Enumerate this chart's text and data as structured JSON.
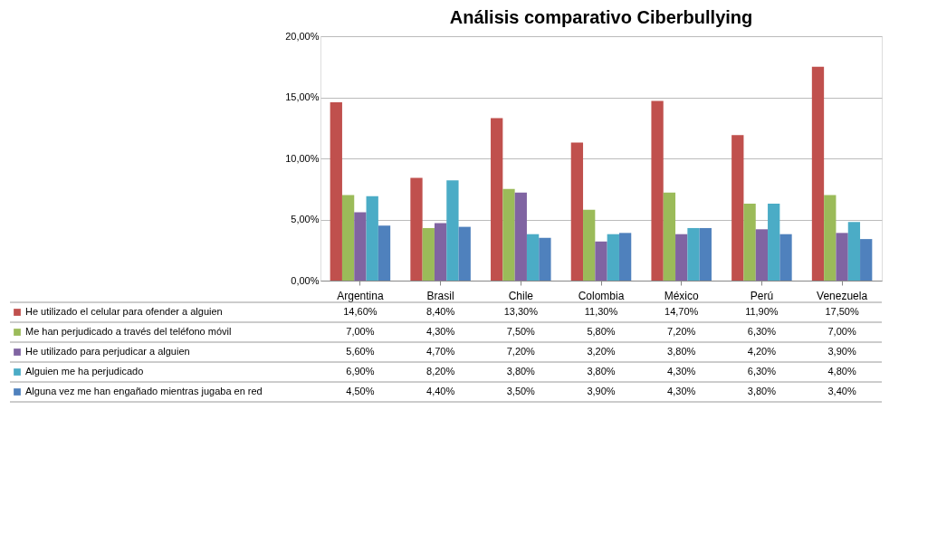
{
  "chart_data": {
    "type": "bar",
    "title": "Análisis comparativo Ciberbullying",
    "categories": [
      "Argentina",
      "Brasil",
      "Chile",
      "Colombia",
      "México",
      "Perú",
      "Venezuela"
    ],
    "series": [
      {
        "name": "He utilizado el celular para  ofender a alguien",
        "color": "#c0504d",
        "values": [
          14.6,
          8.4,
          13.3,
          11.3,
          14.7,
          11.9,
          17.5
        ],
        "value_labels": [
          "14,60%",
          "8,40%",
          "13,30%",
          "11,30%",
          "14,70%",
          "11,90%",
          "17,50%"
        ]
      },
      {
        "name": "Me han perjudicado a través del teléfono móvil",
        "color": "#9bbb59",
        "values": [
          7.0,
          4.3,
          7.5,
          5.8,
          7.2,
          6.3,
          7.0
        ],
        "value_labels": [
          "7,00%",
          "4,30%",
          "7,50%",
          "5,80%",
          "7,20%",
          "6,30%",
          "7,00%"
        ]
      },
      {
        "name": "He utilizado para  perjudicar a alguien",
        "color": "#8064a2",
        "values": [
          5.6,
          4.7,
          7.2,
          3.2,
          3.8,
          4.2,
          3.9
        ],
        "value_labels": [
          "5,60%",
          "4,70%",
          "7,20%",
          "3,20%",
          "3,80%",
          "4,20%",
          "3,90%"
        ]
      },
      {
        "name": "Alguien me  ha  perjudicado",
        "color": "#4bacc6",
        "values": [
          6.9,
          8.2,
          3.8,
          3.8,
          4.3,
          6.3,
          4.8
        ],
        "value_labels": [
          "6,90%",
          "8,20%",
          "3,80%",
          "3,80%",
          "4,30%",
          "6,30%",
          "4,80%"
        ]
      },
      {
        "name": "Alguna vez me  han engañado mientras jugaba en red",
        "color": "#4f81bd",
        "values": [
          4.5,
          4.4,
          3.5,
          3.9,
          4.3,
          3.8,
          3.4
        ],
        "value_labels": [
          "4,50%",
          "4,40%",
          "3,50%",
          "3,90%",
          "4,30%",
          "3,80%",
          "3,40%"
        ]
      }
    ],
    "ylim": [
      0,
      20
    ],
    "yticks": [
      {
        "value": 0,
        "label": "0,00%"
      },
      {
        "value": 5,
        "label": "5,00%"
      },
      {
        "value": 10,
        "label": "10,00%"
      },
      {
        "value": 15,
        "label": "15,00%"
      },
      {
        "value": 20,
        "label": "20,00%"
      }
    ],
    "grid": "y",
    "legend": "bottom left"
  }
}
